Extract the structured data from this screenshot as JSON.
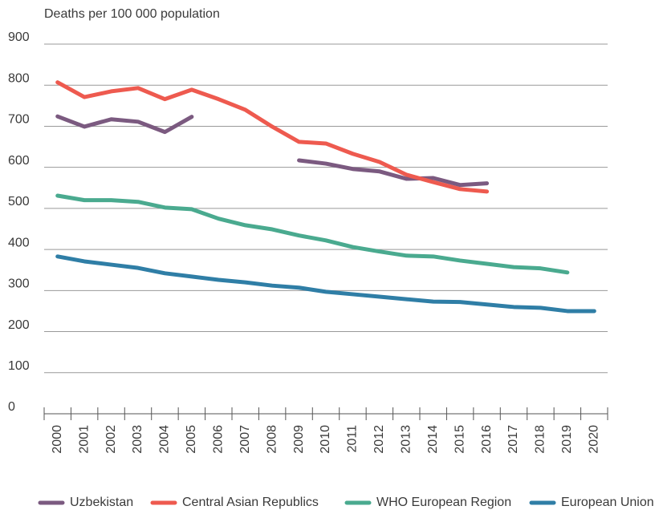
{
  "chart_data": {
    "type": "line",
    "ylabel": "Deaths per 100 000 population",
    "categories": [
      "2000",
      "2001",
      "2002",
      "2003",
      "2004",
      "2005",
      "2006",
      "2007",
      "2008",
      "2009",
      "2010",
      "2011",
      "2012",
      "2013",
      "2014",
      "2015",
      "2016",
      "2017",
      "2018",
      "2019",
      "2020"
    ],
    "series": [
      {
        "name": "Uzbekistan",
        "color": "#7b5a80",
        "values": [
          724,
          699,
          717,
          711,
          686,
          723,
          null,
          null,
          null,
          617,
          609,
          596,
          590,
          572,
          574,
          557,
          561,
          null,
          null,
          null,
          null
        ]
      },
      {
        "name": "Central Asian Republics",
        "color": "#ee5a4f",
        "values": [
          807,
          771,
          785,
          793,
          766,
          789,
          766,
          740,
          699,
          662,
          658,
          633,
          613,
          582,
          564,
          547,
          541,
          null,
          null,
          null,
          null
        ]
      },
      {
        "name": "WHO European Region",
        "color": "#4aaa8f",
        "values": [
          531,
          520,
          520,
          516,
          502,
          498,
          475,
          459,
          449,
          434,
          422,
          406,
          395,
          385,
          383,
          373,
          365,
          357,
          354,
          344,
          null
        ]
      },
      {
        "name": "European Union",
        "color": "#2f7ea6",
        "values": [
          383,
          371,
          363,
          355,
          342,
          334,
          326,
          320,
          312,
          307,
          297,
          291,
          285,
          279,
          273,
          272,
          266,
          260,
          258,
          250,
          250
        ]
      }
    ],
    "ylim": [
      0,
      900
    ],
    "yticks": [
      0,
      100,
      200,
      300,
      400,
      500,
      600,
      700,
      800,
      900
    ],
    "grid": true
  }
}
